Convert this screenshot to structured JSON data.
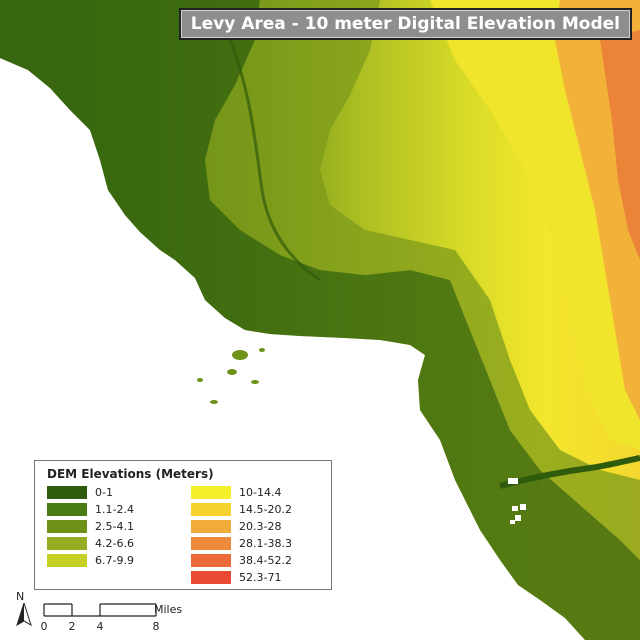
{
  "title": "Levy Area - 10 meter Digital Elevation Model",
  "legend": {
    "title": "DEM Elevations (Meters)",
    "items": [
      {
        "label": "0-1",
        "color": "#2f5b0d"
      },
      {
        "label": "1.1-2.4",
        "color": "#4a7a14"
      },
      {
        "label": "2.5-4.1",
        "color": "#6e9218"
      },
      {
        "label": "4.2-6.6",
        "color": "#95ad20"
      },
      {
        "label": "6.7-9.9",
        "color": "#c6cf24"
      },
      {
        "label": "10-14.4",
        "color": "#f5ef2b"
      },
      {
        "label": "14.5-20.2",
        "color": "#f7d32f"
      },
      {
        "label": "20.3-28",
        "color": "#f1ab3a"
      },
      {
        "label": "28.1-38.3",
        "color": "#ed8a3c"
      },
      {
        "label": "38.4-52.2",
        "color": "#ea6a3a"
      },
      {
        "label": "52.3-71",
        "color": "#e84a36"
      }
    ]
  },
  "scale_bar": {
    "units": "Miles",
    "ticks": [
      "0",
      "2",
      "4",
      "8"
    ]
  },
  "north_arrow": {
    "label": "N",
    "icon": "north-arrow-icon"
  }
}
